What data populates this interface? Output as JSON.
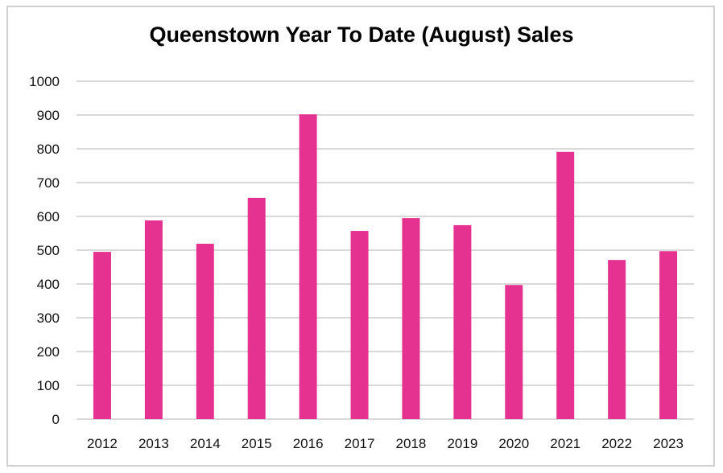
{
  "chart_data": {
    "type": "bar",
    "title": "Queenstown Year To Date (August) Sales",
    "xlabel": "",
    "ylabel": "",
    "categories": [
      "2012",
      "2013",
      "2014",
      "2015",
      "2016",
      "2017",
      "2018",
      "2019",
      "2020",
      "2021",
      "2022",
      "2023"
    ],
    "values": [
      495,
      588,
      519,
      655,
      902,
      557,
      595,
      574,
      397,
      791,
      471,
      497
    ],
    "ylim": [
      0,
      1000
    ],
    "yticks": [
      "0",
      "100",
      "200",
      "300",
      "400",
      "500",
      "600",
      "700",
      "800",
      "900",
      "1000"
    ],
    "grid": true,
    "legend": "none",
    "bar_color": "#e5318f",
    "grid_color": "#d9d9d9"
  }
}
